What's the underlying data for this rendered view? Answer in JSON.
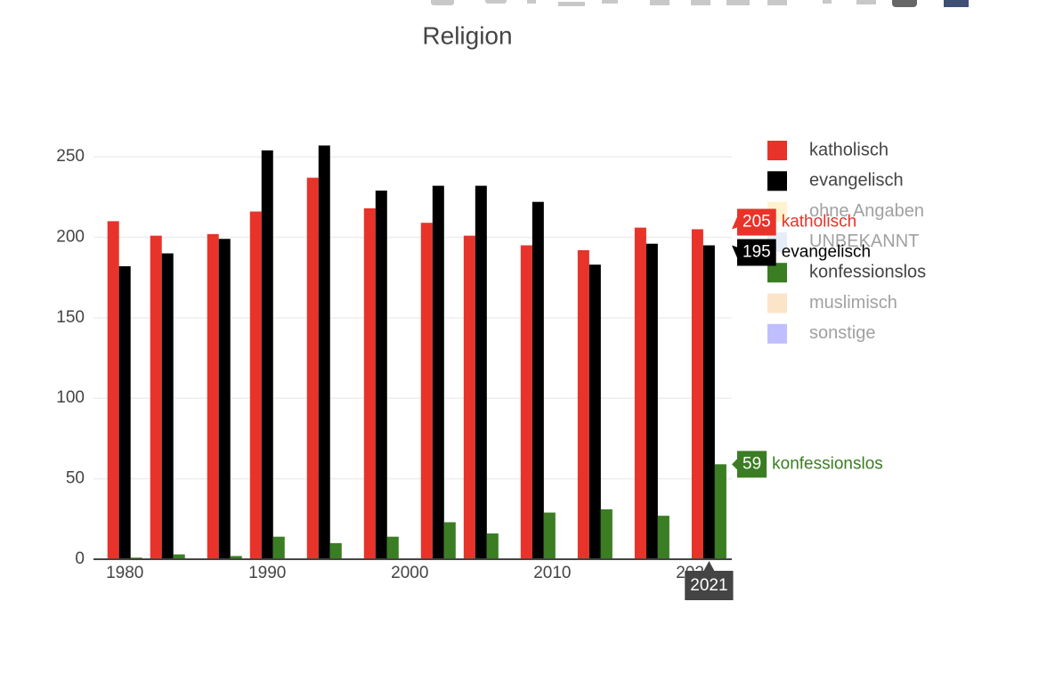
{
  "chart_data": {
    "type": "bar",
    "title": "Religion",
    "x": [
      1980,
      1983,
      1987,
      1990,
      1994,
      1998,
      2002,
      2005,
      2009,
      2013,
      2017,
      2021
    ],
    "series": [
      {
        "name": "katholisch",
        "color": "#e8332a",
        "values": [
          210,
          201,
          202,
          216,
          237,
          218,
          209,
          201,
          195,
          192,
          206,
          205
        ]
      },
      {
        "name": "evangelisch",
        "color": "#000000",
        "values": [
          182,
          190,
          199,
          254,
          257,
          229,
          232,
          232,
          222,
          183,
          196,
          195
        ]
      },
      {
        "name": "ohne Angaben",
        "color": "#ffe7a0",
        "visible": "legendonly"
      },
      {
        "name": "UNBEKANNT",
        "color": "#c9dcf2",
        "visible": "legendonly"
      },
      {
        "name": "konfessionslos",
        "color": "#3a7d22",
        "values": [
          1,
          3,
          2,
          14,
          10,
          14,
          23,
          16,
          29,
          31,
          27,
          59
        ]
      },
      {
        "name": "muslimisch",
        "color": "#f7c98f",
        "visible": "legendonly"
      },
      {
        "name": "sonstige",
        "color": "#8080ff",
        "visible": "legendonly"
      }
    ],
    "xlim": [
      1977.8,
      2022.6
    ],
    "xticks": [
      1980,
      1990,
      2000,
      2010,
      2020
    ],
    "ylim": [
      0,
      260
    ],
    "yticks": [
      0,
      50,
      100,
      150,
      200,
      250
    ],
    "grid": true,
    "legend": "right",
    "hover_index": 11
  }
}
